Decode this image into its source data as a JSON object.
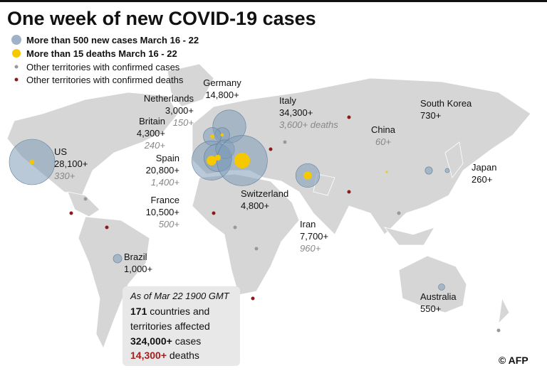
{
  "title": "One week of new COVID-19 cases",
  "legend": [
    "More than 500 new cases March 16 - 22",
    "More than 15 deaths March 16 - 22",
    "Other territories with confirmed cases",
    "Other territories with confirmed deaths"
  ],
  "countries": [
    {
      "name": "US",
      "cases": {
        "value": 28100,
        "label": "28,100+"
      },
      "deaths": {
        "value": 330,
        "label": "330+"
      }
    },
    {
      "name": "Germany",
      "cases": {
        "value": 14800,
        "label": "14,800+"
      }
    },
    {
      "name": "Netherlands",
      "cases": {
        "value": 3000,
        "label": "3,000+"
      },
      "deaths": {
        "value": 150,
        "label": "150+"
      }
    },
    {
      "name": "Britain",
      "cases": {
        "value": 4300,
        "label": "4,300+"
      },
      "deaths": {
        "value": 240,
        "label": "240+"
      }
    },
    {
      "name": "Spain",
      "cases": {
        "value": 20800,
        "label": "20,800+"
      },
      "deaths": {
        "value": 1400,
        "label": "1,400+"
      }
    },
    {
      "name": "France",
      "cases": {
        "value": 10500,
        "label": "10,500+"
      },
      "deaths": {
        "value": 500,
        "label": "500+"
      }
    },
    {
      "name": "Switzerland",
      "cases": {
        "value": 4800,
        "label": "4,800+"
      }
    },
    {
      "name": "Italy",
      "cases": {
        "value": 34300,
        "label": "34,300+"
      },
      "deaths": {
        "value": 3600,
        "label": "3,600+ deaths"
      }
    },
    {
      "name": "Iran",
      "cases": {
        "value": 7700,
        "label": "7,700+"
      },
      "deaths": {
        "value": 960,
        "label": "960+"
      }
    },
    {
      "name": "China",
      "deaths": {
        "value": 60,
        "label": "60+"
      }
    },
    {
      "name": "South Korea",
      "cases": {
        "value": 730,
        "label": "730+"
      }
    },
    {
      "name": "Japan",
      "cases": {
        "value": 260,
        "label": "260+"
      }
    },
    {
      "name": "Brazil",
      "cases": {
        "value": 1000,
        "label": "1,000+"
      }
    },
    {
      "name": "Australia",
      "cases": {
        "value": 550,
        "label": "550+"
      }
    }
  ],
  "summary": {
    "date": "As of Mar 22  1900 GMT",
    "countries": {
      "value": 171,
      "label": "171",
      "text": "countries and territories affected"
    },
    "cases": {
      "value": 324000,
      "label": "324,000+",
      "text": "cases"
    },
    "deaths": {
      "value": 14300,
      "label": "14,300+",
      "text": "deaths"
    }
  },
  "credit": "© AFP"
}
